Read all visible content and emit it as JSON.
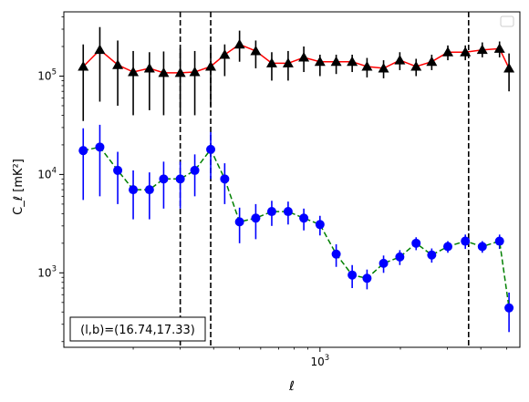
{
  "chart_data": {
    "type": "line",
    "xlabel": "ℓ",
    "ylabel": "C_ℓ  [mK²]",
    "xscale": "log",
    "yscale": "log",
    "xlim": [
      110,
      5600
    ],
    "ylim": [
      175,
      450000
    ],
    "x_tick_labels": [
      {
        "value": 1000,
        "base": "10",
        "exp": "3"
      }
    ],
    "y_tick_labels": [
      {
        "value": 1000,
        "base": "10",
        "exp": "3"
      },
      {
        "value": 10000,
        "base": "10",
        "exp": "4"
      },
      {
        "value": 100000,
        "base": "10",
        "exp": "5"
      }
    ],
    "legend": {
      "location": "upper right",
      "entries": []
    },
    "annotation": "(l,b)=(16.74,17.33)",
    "vertical_lines": [
      {
        "x": 300,
        "style": "dashed",
        "color": "#000000"
      },
      {
        "x": 390,
        "style": "dashed",
        "color": "#000000"
      },
      {
        "x": 3600,
        "style": "dashed",
        "color": "#000000"
      }
    ],
    "series": [
      {
        "marker": "triangle",
        "marker_color": "#000000",
        "line_color": "#ff0000",
        "line_style": "solid",
        "errorbar_color": "#000000",
        "x": [
          130,
          150,
          175,
          200,
          230,
          260,
          300,
          340,
          390,
          440,
          500,
          575,
          660,
          760,
          870,
          1000,
          1150,
          1320,
          1500,
          1730,
          1990,
          2290,
          2620,
          3010,
          3500,
          4050,
          4700,
          5100
        ],
        "y": [
          125000,
          185000,
          130000,
          110000,
          120000,
          108000,
          108000,
          110000,
          125000,
          165000,
          210000,
          180000,
          135000,
          135000,
          155000,
          140000,
          140000,
          140000,
          125000,
          120000,
          145000,
          125000,
          140000,
          175000,
          175000,
          185000,
          190000,
          120000
        ],
        "y_err_low": [
          90000,
          130000,
          80000,
          70000,
          75000,
          68000,
          68000,
          70000,
          75000,
          65000,
          70000,
          60000,
          45000,
          45000,
          45000,
          40000,
          35000,
          30000,
          28000,
          25000,
          30000,
          25000,
          25000,
          30000,
          30000,
          30000,
          35000,
          50000
        ],
        "y_err_high": [
          85000,
          130000,
          100000,
          70000,
          55000,
          70000,
          82000,
          70000,
          75000,
          45000,
          80000,
          50000,
          40000,
          45000,
          45000,
          25000,
          25000,
          25000,
          28000,
          25000,
          30000,
          25000,
          25000,
          30000,
          30000,
          35000,
          35000,
          50000
        ]
      },
      {
        "marker": "circle",
        "marker_color": "#0000ff",
        "line_color": "#008000",
        "line_style": "dashed",
        "errorbar_color": "#0000ff",
        "x": [
          130,
          150,
          175,
          200,
          230,
          260,
          300,
          340,
          390,
          440,
          500,
          575,
          660,
          760,
          870,
          1000,
          1150,
          1320,
          1500,
          1730,
          1990,
          2290,
          2620,
          3010,
          3500,
          4050,
          4700,
          5100
        ],
        "y": [
          17500,
          19000,
          11000,
          7000,
          7000,
          9000,
          9000,
          11000,
          18000,
          9000,
          3300,
          3600,
          4200,
          4200,
          3600,
          3100,
          1550,
          950,
          880,
          1250,
          1450,
          2000,
          1520,
          1850,
          2100,
          1850,
          2100,
          440
        ],
        "y_err_low": [
          12000,
          13000,
          6000,
          3500,
          3500,
          4500,
          4500,
          5000,
          9000,
          4000,
          1300,
          1400,
          1200,
          1100,
          900,
          700,
          400,
          250,
          200,
          250,
          250,
          300,
          250,
          250,
          350,
          250,
          350,
          190
        ],
        "y_err_high": [
          12000,
          13000,
          6000,
          4000,
          3500,
          4500,
          4500,
          5000,
          9000,
          4000,
          1300,
          1400,
          1200,
          1100,
          900,
          700,
          400,
          250,
          200,
          250,
          250,
          300,
          250,
          250,
          350,
          250,
          350,
          190
        ]
      }
    ]
  }
}
